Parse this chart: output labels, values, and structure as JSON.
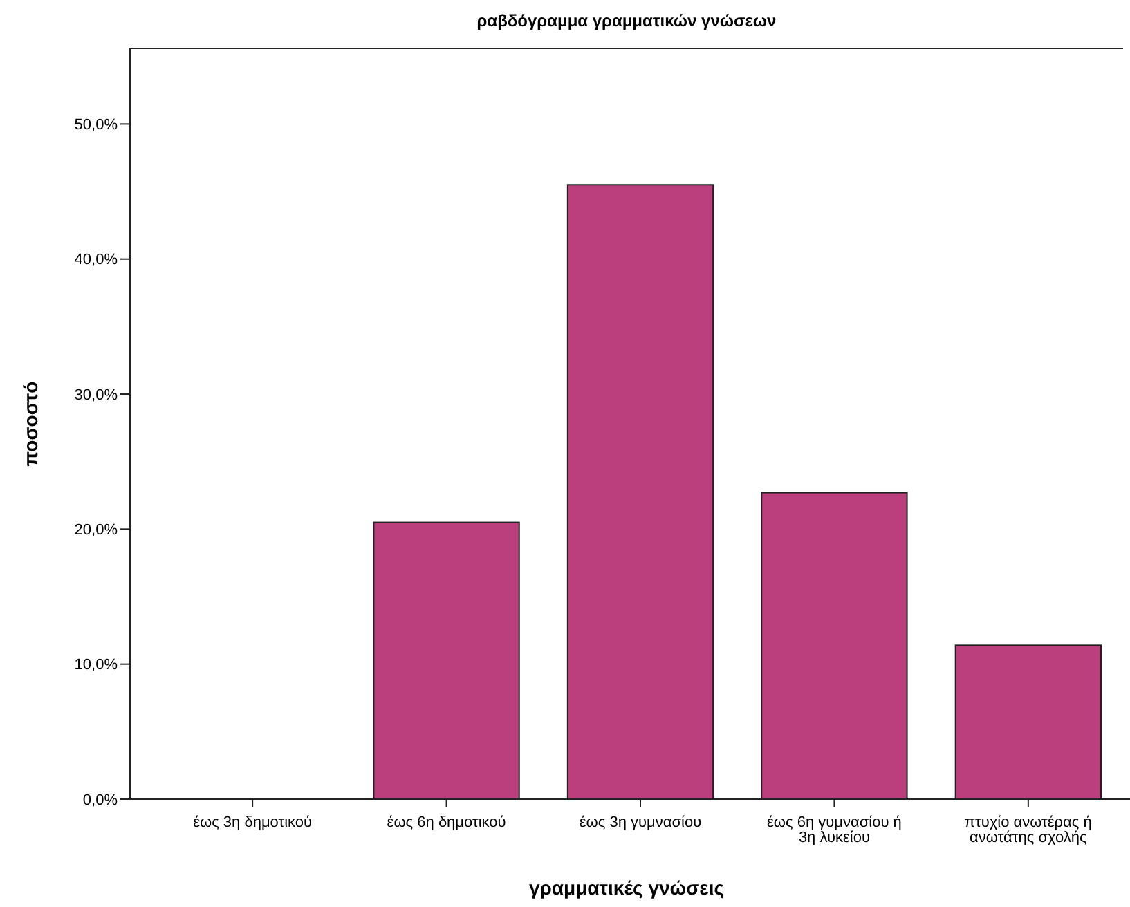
{
  "chart_data": {
    "type": "bar",
    "title": "ραβδόγραμμα γραμματικών γνώσεων",
    "xlabel": "γραμματικές γνώσεις",
    "ylabel": "ποσοστό",
    "categories": [
      "έως 3η δημοτικού",
      "έως 6η δημοτικού",
      "έως 3η γυμνασίου",
      "έως 6η γυμνασίου ή 3η λυκείου",
      "πτυχίο ανωτέρας ή ανωτάτης σχολής"
    ],
    "values": [
      0,
      20.5,
      45.5,
      22.7,
      11.4
    ],
    "color": "#bb3f7c",
    "ylim": [
      0,
      55.6
    ],
    "yticks": [
      {
        "value": 0,
        "label": "0,0%"
      },
      {
        "value": 10,
        "label": "10,0%"
      },
      {
        "value": 20,
        "label": "20,0%"
      },
      {
        "value": 30,
        "label": "30,0%"
      },
      {
        "value": 40,
        "label": "40,0%"
      },
      {
        "value": 50,
        "label": "50,0%"
      }
    ],
    "grid": false
  }
}
